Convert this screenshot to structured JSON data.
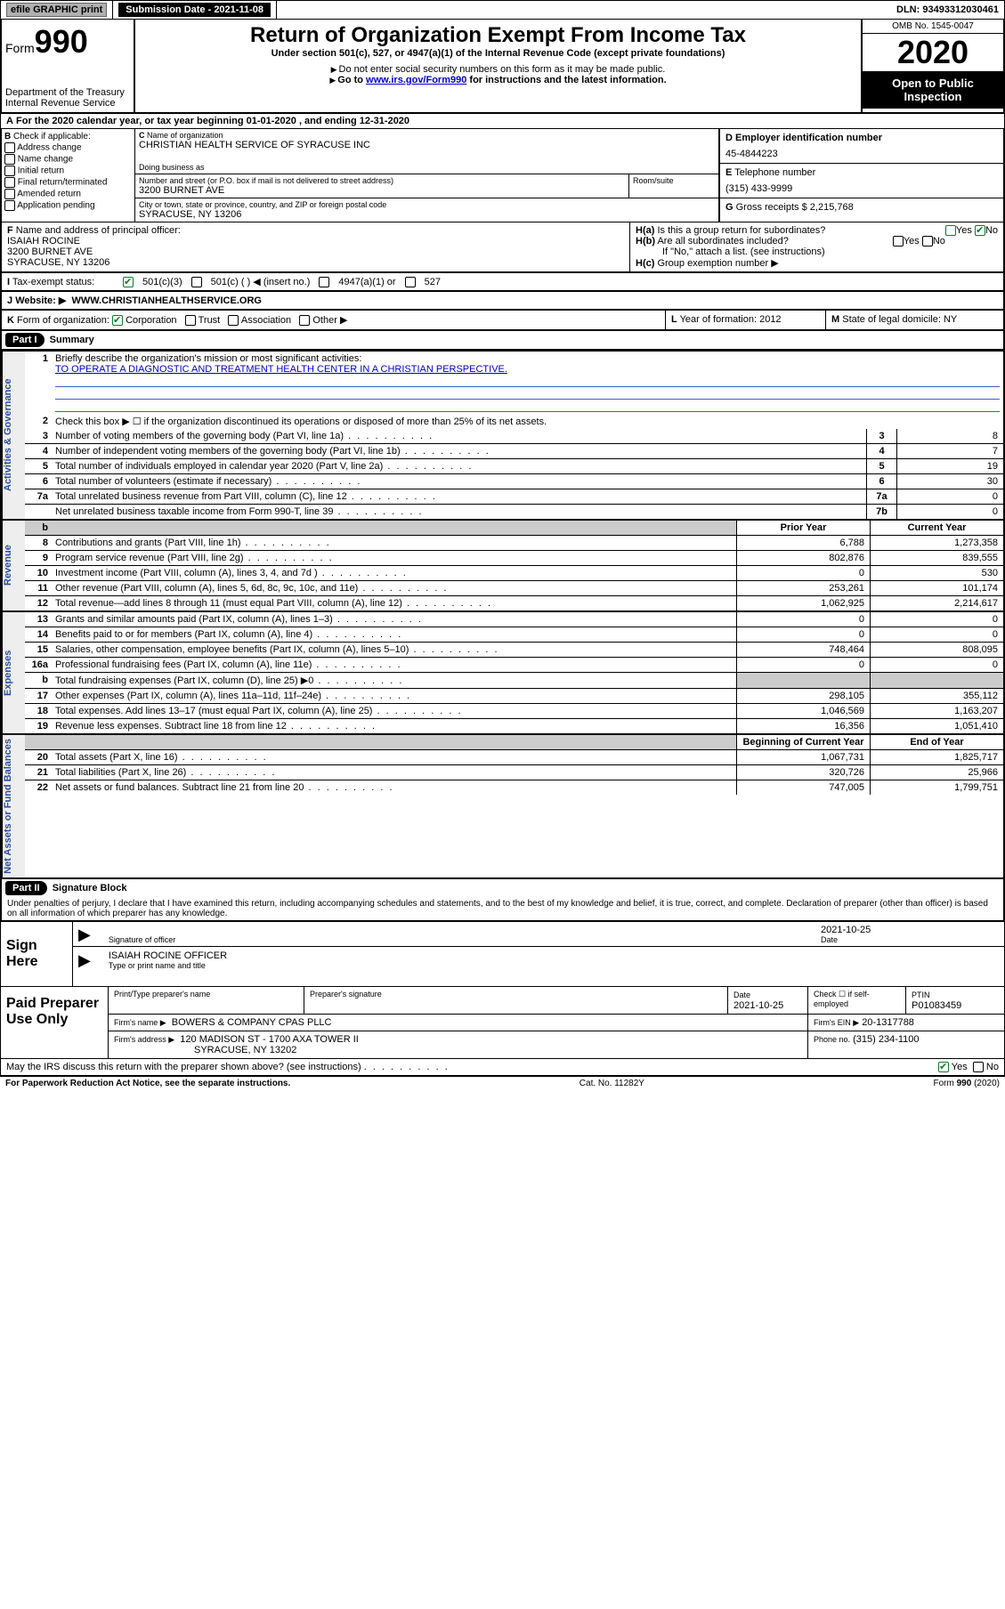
{
  "topbar": {
    "efile_label": "efile GRAPHIC print",
    "submission_label": "Submission Date - 2021-11-08",
    "dln": "DLN: 93493312030461"
  },
  "header": {
    "form_word": "Form",
    "form_no": "990",
    "dept": "Department of the Treasury\nInternal Revenue Service",
    "title": "Return of Organization Exempt From Income Tax",
    "subtitle": "Under section 501(c), 527, or 4947(a)(1) of the Internal Revenue Code (except private foundations)",
    "note1": "Do not enter social security numbers on this form as it may be made public.",
    "note2_pre": "Go to ",
    "note2_link": "www.irs.gov/Form990",
    "note2_post": " for instructions and the latest information.",
    "omb": "OMB No. 1545-0047",
    "year": "2020",
    "open": "Open to Public Inspection"
  },
  "A": "For the 2020 calendar year, or tax year beginning 01-01-2020    , and ending 12-31-2020",
  "B": {
    "label": "Check if applicable:",
    "opts": [
      "Address change",
      "Name change",
      "Initial return",
      "Final return/terminated",
      "Amended return",
      "Application pending"
    ]
  },
  "C": {
    "name_label": "Name of organization",
    "name": "CHRISTIAN HEALTH SERVICE OF SYRACUSE INC",
    "dba_label": "Doing business as",
    "addr_label": "Number and street (or P.O. box if mail is not delivered to street address)",
    "room_label": "Room/suite",
    "addr": "3200 BURNET AVE",
    "city_label": "City or town, state or province, country, and ZIP or foreign postal code",
    "city": "SYRACUSE, NY  13206"
  },
  "D": {
    "label": "Employer identification number",
    "val": "45-4844223"
  },
  "E": {
    "label": "Telephone number",
    "val": "(315) 433-9999"
  },
  "G": {
    "label": "Gross receipts $",
    "val": "2,215,768"
  },
  "F": {
    "label": "Name and address of principal officer:",
    "name": "ISAIAH ROCINE",
    "addr": "3200 BURNET AVE",
    "city": "SYRACUSE, NY  13206"
  },
  "H": {
    "a": "Is this a group return for subordinates?",
    "b": "Are all subordinates included?",
    "b_note": "If \"No,\" attach a list. (see instructions)",
    "c": "Group exemption number ▶"
  },
  "I": {
    "label": "Tax-exempt status:",
    "o1": "501(c)(3)",
    "o2": "501(c) (  ) ◀ (insert no.)",
    "o3": "4947(a)(1) or",
    "o4": "527"
  },
  "J": {
    "label": "Website: ▶",
    "val": "WWW.CHRISTIANHEALTHSERVICE.ORG"
  },
  "K": "Form of organization:",
  "K_opts": [
    "Corporation",
    "Trust",
    "Association",
    "Other ▶"
  ],
  "L": {
    "label": "Year of formation:",
    "val": "2012"
  },
  "M": {
    "label": "State of legal domicile:",
    "val": "NY"
  },
  "part1": {
    "tab": "Part I",
    "title": "Summary",
    "vtab1": "Activities & Governance",
    "vtab2": "Revenue",
    "vtab3": "Expenses",
    "vtab4": "Net Assets or Fund Balances",
    "l1": "Briefly describe the organization's mission or most significant activities:",
    "mission": "TO OPERATE A DIAGNOSTIC AND TREATMENT HEALTH CENTER IN A CHRISTIAN PERSPECTIVE.",
    "l2": "Check this box ▶ ☐  if the organization discontinued its operations or disposed of more than 25% of its net assets.",
    "rows_gov": [
      {
        "n": "3",
        "t": "Number of voting members of the governing body (Part VI, line 1a)",
        "b": "3",
        "v": "8"
      },
      {
        "n": "4",
        "t": "Number of independent voting members of the governing body (Part VI, line 1b)",
        "b": "4",
        "v": "7"
      },
      {
        "n": "5",
        "t": "Total number of individuals employed in calendar year 2020 (Part V, line 2a)",
        "b": "5",
        "v": "19"
      },
      {
        "n": "6",
        "t": "Total number of volunteers (estimate if necessary)",
        "b": "6",
        "v": "30"
      },
      {
        "n": "7a",
        "t": "Total unrelated business revenue from Part VIII, column (C), line 12",
        "b": "7a",
        "v": "0"
      },
      {
        "n": "",
        "t": "Net unrelated business taxable income from Form 990-T, line 39",
        "b": "7b",
        "v": "0"
      }
    ],
    "col_prior": "Prior Year",
    "col_curr": "Current Year",
    "col_beg": "Beginning of Current Year",
    "col_end": "End of Year",
    "rows_rev": [
      {
        "n": "8",
        "t": "Contributions and grants (Part VIII, line 1h)",
        "p": "6,788",
        "c": "1,273,358"
      },
      {
        "n": "9",
        "t": "Program service revenue (Part VIII, line 2g)",
        "p": "802,876",
        "c": "839,555"
      },
      {
        "n": "10",
        "t": "Investment income (Part VIII, column (A), lines 3, 4, and 7d )",
        "p": "0",
        "c": "530"
      },
      {
        "n": "11",
        "t": "Other revenue (Part VIII, column (A), lines 5, 6d, 8c, 9c, 10c, and 11e)",
        "p": "253,261",
        "c": "101,174"
      },
      {
        "n": "12",
        "t": "Total revenue—add lines 8 through 11 (must equal Part VIII, column (A), line 12)",
        "p": "1,062,925",
        "c": "2,214,617"
      }
    ],
    "rows_exp": [
      {
        "n": "13",
        "t": "Grants and similar amounts paid (Part IX, column (A), lines 1–3)",
        "p": "0",
        "c": "0"
      },
      {
        "n": "14",
        "t": "Benefits paid to or for members (Part IX, column (A), line 4)",
        "p": "0",
        "c": "0"
      },
      {
        "n": "15",
        "t": "Salaries, other compensation, employee benefits (Part IX, column (A), lines 5–10)",
        "p": "748,464",
        "c": "808,095"
      },
      {
        "n": "16a",
        "t": "Professional fundraising fees (Part IX, column (A), line 11e)",
        "p": "0",
        "c": "0"
      },
      {
        "n": "b",
        "t": "Total fundraising expenses (Part IX, column (D), line 25) ▶0",
        "p": "",
        "c": "",
        "shade": true
      },
      {
        "n": "17",
        "t": "Other expenses (Part IX, column (A), lines 11a–11d, 11f–24e)",
        "p": "298,105",
        "c": "355,112"
      },
      {
        "n": "18",
        "t": "Total expenses. Add lines 13–17 (must equal Part IX, column (A), line 25)",
        "p": "1,046,569",
        "c": "1,163,207"
      },
      {
        "n": "19",
        "t": "Revenue less expenses. Subtract line 18 from line 12",
        "p": "16,356",
        "c": "1,051,410"
      }
    ],
    "rows_net": [
      {
        "n": "20",
        "t": "Total assets (Part X, line 16)",
        "p": "1,067,731",
        "c": "1,825,717"
      },
      {
        "n": "21",
        "t": "Total liabilities (Part X, line 26)",
        "p": "320,726",
        "c": "25,966"
      },
      {
        "n": "22",
        "t": "Net assets or fund balances. Subtract line 21 from line 20",
        "p": "747,005",
        "c": "1,799,751"
      }
    ]
  },
  "part2": {
    "tab": "Part II",
    "title": "Signature Block",
    "decl": "Under penalties of perjury, I declare that I have examined this return, including accompanying schedules and statements, and to the best of my knowledge and belief, it is true, correct, and complete. Declaration of preparer (other than officer) is based on all information of which preparer has any knowledge."
  },
  "sign": {
    "here": "Sign Here",
    "sig_label": "Signature of officer",
    "date_label": "Date",
    "date": "2021-10-25",
    "name": "ISAIAH ROCINE  OFFICER",
    "name_label": "Type or print name and title"
  },
  "prep": {
    "label": "Paid Preparer Use Only",
    "c1": "Print/Type preparer's name",
    "c2": "Preparer's signature",
    "c3_l": "Date",
    "c3": "2021-10-25",
    "c4_l": "Check ☐ if self-employed",
    "c5_l": "PTIN",
    "c5": "P01083459",
    "firm_l": "Firm's name    ▶",
    "firm": "BOWERS & COMPANY CPAS PLLC",
    "ein_l": "Firm's EIN ▶",
    "ein": "20-1317788",
    "addr_l": "Firm's address ▶",
    "addr": "120 MADISON ST - 1700 AXA TOWER II",
    "addr2": "SYRACUSE, NY  13202",
    "phone_l": "Phone no.",
    "phone": "(315) 234-1100",
    "discuss": "May the IRS discuss this return with the preparer shown above? (see instructions)"
  },
  "footer": {
    "left": "For Paperwork Reduction Act Notice, see the separate instructions.",
    "mid": "Cat. No. 11282Y",
    "right": "Form 990 (2020)"
  }
}
